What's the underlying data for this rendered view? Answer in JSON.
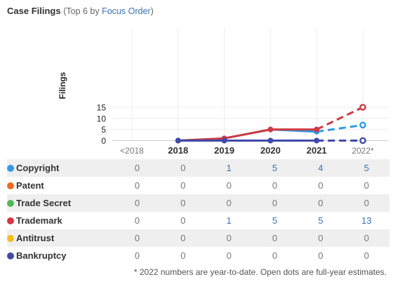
{
  "header": {
    "title": "Case Filings",
    "subtitle_prefix": "(Top 6 by ",
    "subtitle_link": "Focus Order",
    "subtitle_suffix": ")"
  },
  "chart_data": {
    "type": "line",
    "ylabel": "Filings",
    "ylim": [
      0,
      15
    ],
    "yticks": [
      0,
      5,
      10,
      15
    ],
    "categories": [
      "<2018",
      "2018",
      "2019",
      "2020",
      "2021",
      "2022*"
    ],
    "grid": true,
    "series": [
      {
        "name": "Copyright",
        "color": "#2e9be6",
        "values": [
          null,
          0,
          1,
          5,
          4,
          null
        ],
        "estimate_2022": 7
      },
      {
        "name": "Trademark",
        "color": "#cf3a42",
        "values": [
          null,
          0,
          1,
          5,
          5,
          null
        ],
        "estimate_2022": 15
      },
      {
        "name": "Bankruptcy",
        "color": "#3f4aa8",
        "values": [
          null,
          0,
          0,
          0,
          0,
          null
        ],
        "estimate_2022": 0
      }
    ]
  },
  "table": {
    "rows": [
      {
        "label": "Copyright",
        "color": "#2e9be6",
        "values": [
          "0",
          "0",
          "1",
          "5",
          "4",
          "5"
        ]
      },
      {
        "label": "Patent",
        "color": "#f06a22",
        "values": [
          "0",
          "0",
          "0",
          "0",
          "0",
          "0"
        ]
      },
      {
        "label": "Trade Secret",
        "color": "#4fb957",
        "values": [
          "0",
          "0",
          "0",
          "0",
          "0",
          "0"
        ]
      },
      {
        "label": "Trademark",
        "color": "#d9343f",
        "values": [
          "0",
          "0",
          "1",
          "5",
          "5",
          "13"
        ]
      },
      {
        "label": "Antitrust",
        "color": "#f5be1a",
        "values": [
          "0",
          "0",
          "0",
          "0",
          "0",
          "0"
        ]
      },
      {
        "label": "Bankruptcy",
        "color": "#3f4aa8",
        "values": [
          "0",
          "0",
          "0",
          "0",
          "0",
          "0"
        ]
      }
    ]
  },
  "footnote": "* 2022 numbers are year-to-date. Open dots are full-year estimates."
}
